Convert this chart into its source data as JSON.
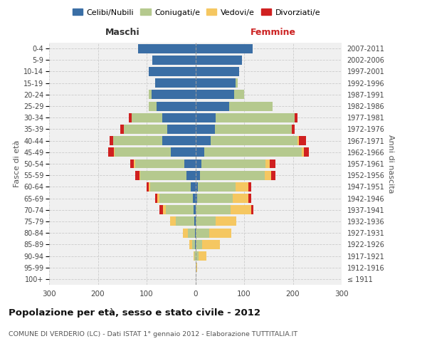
{
  "age_groups": [
    "100+",
    "95-99",
    "90-94",
    "85-89",
    "80-84",
    "75-79",
    "70-74",
    "65-69",
    "60-64",
    "55-59",
    "50-54",
    "45-49",
    "40-44",
    "35-39",
    "30-34",
    "25-29",
    "20-24",
    "15-19",
    "10-14",
    "5-9",
    "0-4"
  ],
  "birth_years": [
    "≤ 1911",
    "1912-1916",
    "1917-1921",
    "1922-1926",
    "1927-1931",
    "1932-1936",
    "1937-1941",
    "1942-1946",
    "1947-1951",
    "1952-1956",
    "1957-1961",
    "1962-1966",
    "1967-1971",
    "1972-1976",
    "1977-1981",
    "1982-1986",
    "1987-1991",
    "1992-1996",
    "1997-2001",
    "2002-2006",
    "2007-2011"
  ],
  "colors": {
    "celibe": "#3A6EA5",
    "coniugato": "#B5C98E",
    "vedovo": "#F5C761",
    "divorziato": "#D02020"
  },
  "maschi": {
    "celibe": [
      0,
      0,
      0,
      1,
      1,
      2,
      3,
      5,
      10,
      18,
      22,
      50,
      68,
      58,
      68,
      80,
      90,
      82,
      95,
      88,
      118
    ],
    "coniugato": [
      0,
      0,
      2,
      6,
      14,
      38,
      58,
      68,
      82,
      95,
      102,
      115,
      100,
      88,
      62,
      16,
      6,
      0,
      0,
      0,
      0
    ],
    "vedovo": [
      0,
      0,
      2,
      6,
      10,
      12,
      5,
      5,
      3,
      2,
      2,
      2,
      0,
      0,
      0,
      0,
      0,
      0,
      0,
      0,
      0
    ],
    "divorziato": [
      0,
      0,
      0,
      0,
      0,
      0,
      8,
      5,
      5,
      8,
      8,
      12,
      8,
      8,
      6,
      0,
      0,
      0,
      0,
      0,
      0
    ]
  },
  "femmine": {
    "nubile": [
      0,
      0,
      0,
      0,
      0,
      0,
      0,
      3,
      5,
      10,
      12,
      18,
      32,
      40,
      42,
      70,
      80,
      82,
      90,
      96,
      118
    ],
    "coniugata": [
      0,
      2,
      6,
      14,
      28,
      42,
      72,
      74,
      78,
      132,
      132,
      200,
      178,
      158,
      162,
      88,
      20,
      5,
      0,
      0,
      0
    ],
    "vedova": [
      0,
      2,
      16,
      36,
      46,
      42,
      42,
      32,
      26,
      14,
      8,
      5,
      2,
      0,
      0,
      0,
      0,
      0,
      0,
      0,
      0
    ],
    "divorziata": [
      0,
      0,
      0,
      0,
      0,
      0,
      5,
      5,
      5,
      8,
      12,
      10,
      15,
      5,
      5,
      0,
      0,
      0,
      0,
      0,
      0
    ]
  },
  "xlim": 300,
  "title": "Popolazione per età, sesso e stato civile - 2012",
  "subtitle": "COMUNE DI VERDERIO (LC) - Dati ISTAT 1° gennaio 2012 - Elaborazione TUTTITALIA.IT",
  "ylabel_left": "Fasce di età",
  "ylabel_right": "Anni di nascita",
  "xlabel_left": "Maschi",
  "xlabel_right": "Femmine",
  "legend_labels": [
    "Celibi/Nubili",
    "Coniugati/e",
    "Vedovi/e",
    "Divorziati/e"
  ],
  "bg_color": "#ffffff",
  "plot_bg": "#f0f0f0",
  "grid_color": "#cccccc",
  "maschi_header_color": "#333333",
  "femmine_header_color": "#cc2222"
}
